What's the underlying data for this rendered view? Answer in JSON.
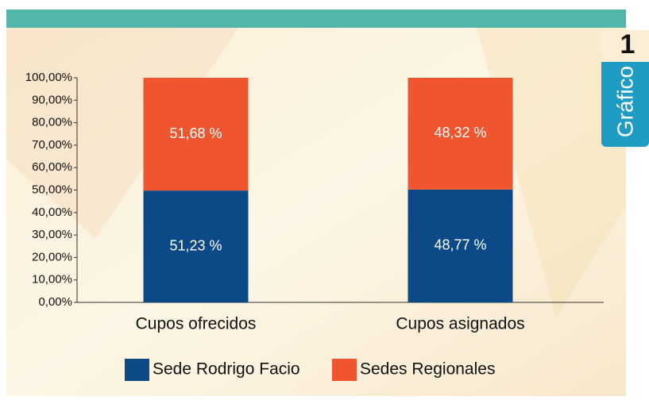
{
  "chart_data": {
    "type": "bar",
    "stacking": "percent",
    "categories": [
      "Cupos ofrecidos",
      "Cupos asignados"
    ],
    "series": [
      {
        "name": "Sede Rodrigo Facio",
        "color": "#0b4a86",
        "values": [
          51.23,
          48.77
        ],
        "value_labels": [
          "51,23 %",
          "48,77 %"
        ]
      },
      {
        "name": "Sedes Regionales",
        "color": "#ef5630",
        "values": [
          51.68,
          48.32
        ],
        "value_labels": [
          "51,68 %",
          "48,32 %"
        ]
      }
    ],
    "ylim": [
      0,
      100
    ],
    "yticks": [
      {
        "value": 0,
        "label": "0,00%"
      },
      {
        "value": 10,
        "label": "10,00%"
      },
      {
        "value": 20,
        "label": "20,00%"
      },
      {
        "value": 30,
        "label": "30,00%"
      },
      {
        "value": 40,
        "label": "40,00%"
      },
      {
        "value": 50,
        "label": "50,00%"
      },
      {
        "value": 60,
        "label": "60,00%"
      },
      {
        "value": 70,
        "label": "70,00%"
      },
      {
        "value": 80,
        "label": "80,00%"
      },
      {
        "value": 90,
        "label": "90,00%"
      },
      {
        "value": 100,
        "label": "100,00%"
      }
    ],
    "legend": "bottom"
  },
  "badge": {
    "number": "1",
    "label": "Gráfico"
  }
}
